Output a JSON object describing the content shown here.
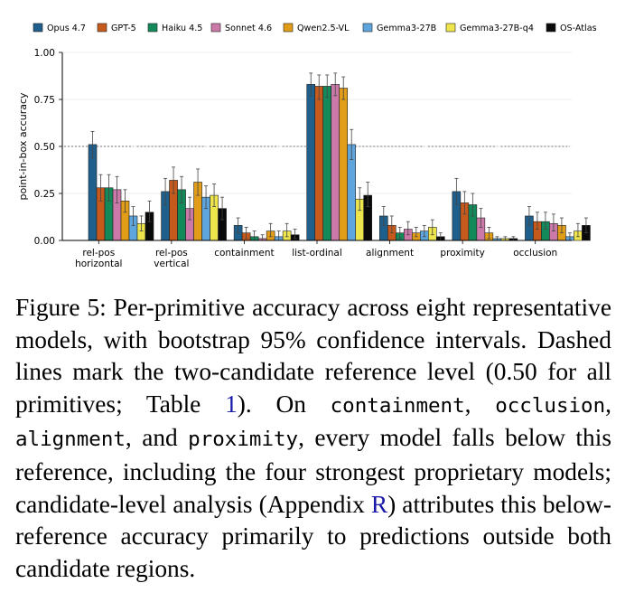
{
  "chart_data": {
    "type": "bar",
    "ylabel": "point-in-box accuracy",
    "xlabel": "",
    "ylim": [
      0,
      1
    ],
    "yticks": [
      "0.00",
      "0.25",
      "0.50",
      "0.75",
      "1.00"
    ],
    "grid": "horizontal",
    "legend": "top",
    "reference_line": 0.5,
    "categories": [
      "rel-pos\nhorizontal",
      "rel-pos\nvertical",
      "containment",
      "list-ordinal",
      "alignment",
      "proximity",
      "occlusion"
    ],
    "series": [
      {
        "name": "Opus 4.7",
        "color": "#1f5f8b",
        "values": [
          0.51,
          0.26,
          0.08,
          0.83,
          0.13,
          0.26,
          0.13
        ],
        "ci_low": [
          0.44,
          0.19,
          0.04,
          0.77,
          0.08,
          0.19,
          0.08
        ],
        "ci_high": [
          0.58,
          0.33,
          0.12,
          0.89,
          0.18,
          0.33,
          0.18
        ]
      },
      {
        "name": "GPT-5",
        "color": "#c65a1c",
        "values": [
          0.28,
          0.32,
          0.04,
          0.82,
          0.08,
          0.2,
          0.1
        ],
        "ci_low": [
          0.21,
          0.25,
          0.01,
          0.75,
          0.04,
          0.14,
          0.06
        ],
        "ci_high": [
          0.35,
          0.39,
          0.07,
          0.88,
          0.13,
          0.26,
          0.15
        ]
      },
      {
        "name": "Haiku 4.5",
        "color": "#148a5b",
        "values": [
          0.28,
          0.27,
          0.02,
          0.82,
          0.04,
          0.19,
          0.1
        ],
        "ci_low": [
          0.21,
          0.2,
          0.0,
          0.76,
          0.01,
          0.13,
          0.06
        ],
        "ci_high": [
          0.35,
          0.34,
          0.05,
          0.88,
          0.07,
          0.25,
          0.15
        ]
      },
      {
        "name": "Sonnet 4.6",
        "color": "#cb79a8",
        "values": [
          0.27,
          0.17,
          0.01,
          0.83,
          0.06,
          0.12,
          0.09
        ],
        "ci_low": [
          0.2,
          0.11,
          0.0,
          0.77,
          0.03,
          0.07,
          0.05
        ],
        "ci_high": [
          0.34,
          0.23,
          0.03,
          0.89,
          0.1,
          0.17,
          0.14
        ]
      },
      {
        "name": "Qwen2.5-VL",
        "color": "#e19d17",
        "values": [
          0.21,
          0.31,
          0.05,
          0.81,
          0.04,
          0.04,
          0.08
        ],
        "ci_low": [
          0.15,
          0.24,
          0.02,
          0.75,
          0.02,
          0.01,
          0.04
        ],
        "ci_high": [
          0.27,
          0.38,
          0.09,
          0.87,
          0.07,
          0.07,
          0.12
        ]
      },
      {
        "name": "Gemma3-27B",
        "color": "#5da5dc",
        "values": [
          0.13,
          0.23,
          0.02,
          0.51,
          0.05,
          0.01,
          0.02
        ],
        "ci_low": [
          0.08,
          0.17,
          0.0,
          0.43,
          0.02,
          0.0,
          0.0
        ],
        "ci_high": [
          0.18,
          0.29,
          0.05,
          0.59,
          0.08,
          0.02,
          0.04
        ]
      },
      {
        "name": "Gemma3-27B-q4",
        "color": "#eee44c",
        "values": [
          0.09,
          0.24,
          0.05,
          0.22,
          0.07,
          0.01,
          0.05
        ],
        "ci_low": [
          0.05,
          0.18,
          0.02,
          0.16,
          0.03,
          0.0,
          0.02
        ],
        "ci_high": [
          0.13,
          0.3,
          0.09,
          0.28,
          0.11,
          0.02,
          0.09
        ]
      },
      {
        "name": "OS-Atlas",
        "color": "#0a0a0a",
        "values": [
          0.15,
          0.17,
          0.03,
          0.24,
          0.02,
          0.01,
          0.08
        ],
        "ci_low": [
          0.1,
          0.11,
          0.01,
          0.18,
          0.0,
          0.0,
          0.04
        ],
        "ci_high": [
          0.21,
          0.23,
          0.06,
          0.31,
          0.04,
          0.02,
          0.12
        ]
      }
    ]
  },
  "caption": {
    "lead": "Figure 5: Per-primitive accuracy across eight representative models, with bootstrap 95% confidence intervals. Dashed lines mark the two-candidate reference level (0.50 for all primitives; Table ",
    "table_ref": "1",
    "mid1": ").  On ",
    "code1": "containment",
    "sep1": ", ",
    "code2": "occlusion",
    "sep2": ", ",
    "code3": "alignment",
    "sep3": ", and ",
    "code4": "proximity",
    "mid2": ", every model falls below this reference, including the four strongest proprietary models; candidate-level analysis (Appendix ",
    "appendix_ref": "R",
    "tail": ") attributes this below-reference accuracy primarily to predictions outside both candidate regions."
  }
}
